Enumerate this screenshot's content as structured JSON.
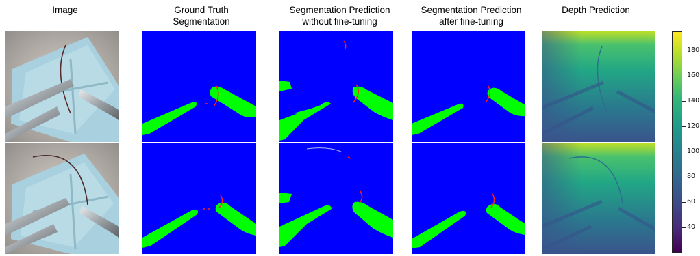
{
  "figure": {
    "headers": [
      {
        "lines": [
          "Image"
        ]
      },
      {
        "lines": [
          "Ground Truth",
          "Segmentation"
        ]
      },
      {
        "lines": [
          "Segmentation Prediction",
          "without fine-tuning"
        ]
      },
      {
        "lines": [
          "Segmentation Prediction",
          "after fine-tuning"
        ]
      },
      {
        "lines": [
          "Depth Prediction"
        ]
      }
    ],
    "rows": 2,
    "segmentation_colors": {
      "background": "#0000ff",
      "instrument": "#00ff00",
      "suture": "#ff2020"
    },
    "colorbar": {
      "ticks": [
        "40",
        "60",
        "80",
        "100",
        "120",
        "140",
        "160",
        "180"
      ],
      "range": [
        20,
        195
      ],
      "colormap": "viridis"
    }
  }
}
